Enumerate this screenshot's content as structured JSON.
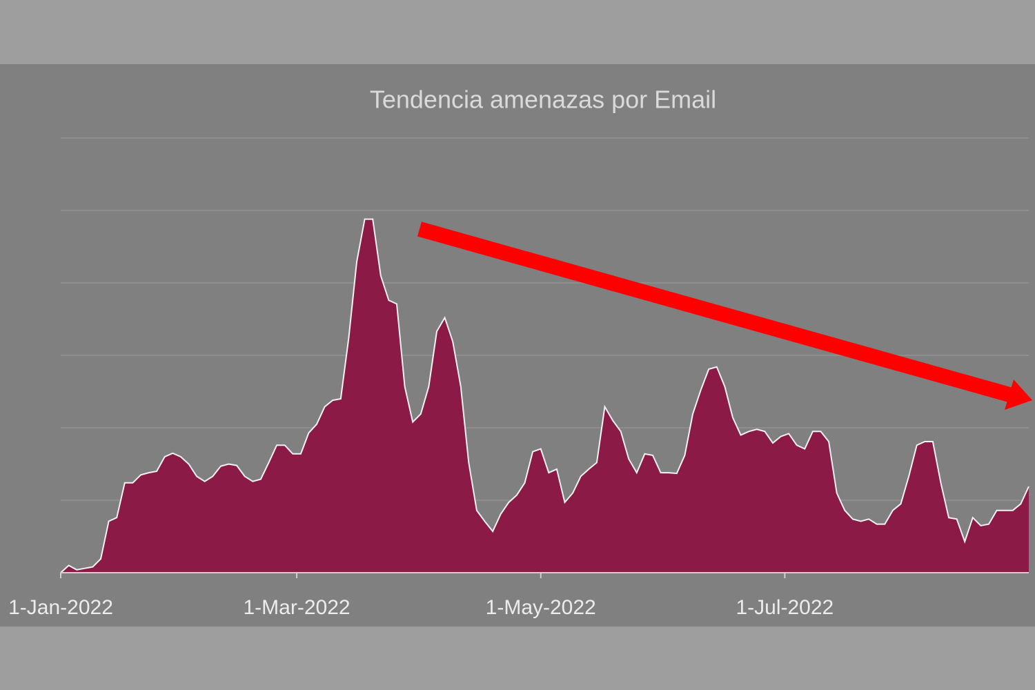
{
  "chart_data": {
    "type": "area",
    "title": "Tendencia amenazas por Email",
    "x": [
      "2022-01-01",
      "2022-01-03",
      "2022-01-05",
      "2022-01-07",
      "2022-01-09",
      "2022-01-11",
      "2022-01-13",
      "2022-01-15",
      "2022-01-17",
      "2022-01-19",
      "2022-01-21",
      "2022-01-23",
      "2022-01-25",
      "2022-01-27",
      "2022-01-29",
      "2022-01-31",
      "2022-02-02",
      "2022-02-04",
      "2022-02-06",
      "2022-02-08",
      "2022-02-10",
      "2022-02-12",
      "2022-02-14",
      "2022-02-16",
      "2022-02-18",
      "2022-02-20",
      "2022-02-22",
      "2022-02-24",
      "2022-02-26",
      "2022-02-28",
      "2022-03-02",
      "2022-03-04",
      "2022-03-06",
      "2022-03-08",
      "2022-03-10",
      "2022-03-12",
      "2022-03-14",
      "2022-03-16",
      "2022-03-18",
      "2022-03-20",
      "2022-03-22",
      "2022-03-24",
      "2022-03-26",
      "2022-03-28",
      "2022-03-30",
      "2022-04-01",
      "2022-04-03",
      "2022-04-05",
      "2022-04-07",
      "2022-04-09",
      "2022-04-11",
      "2022-04-13",
      "2022-04-15",
      "2022-04-17",
      "2022-04-19",
      "2022-04-21",
      "2022-04-23",
      "2022-04-25",
      "2022-04-27",
      "2022-04-29",
      "2022-05-01",
      "2022-05-03",
      "2022-05-05",
      "2022-05-07",
      "2022-05-09",
      "2022-05-11",
      "2022-05-13",
      "2022-05-15",
      "2022-05-17",
      "2022-05-19",
      "2022-05-21",
      "2022-05-23",
      "2022-05-25",
      "2022-05-27",
      "2022-05-29",
      "2022-05-31",
      "2022-06-02",
      "2022-06-04",
      "2022-06-06",
      "2022-06-08",
      "2022-06-10",
      "2022-06-12",
      "2022-06-14",
      "2022-06-16",
      "2022-06-18",
      "2022-06-20",
      "2022-06-22",
      "2022-06-24",
      "2022-06-26",
      "2022-06-28",
      "2022-06-30",
      "2022-07-02",
      "2022-07-04",
      "2022-07-06",
      "2022-07-08",
      "2022-07-10",
      "2022-07-12",
      "2022-07-14",
      "2022-07-16",
      "2022-07-18",
      "2022-07-20",
      "2022-07-22",
      "2022-07-24",
      "2022-07-26",
      "2022-07-28",
      "2022-07-30",
      "2022-08-01",
      "2022-08-03",
      "2022-08-05",
      "2022-08-07",
      "2022-08-09",
      "2022-08-11",
      "2022-08-13",
      "2022-08-15",
      "2022-08-17",
      "2022-08-19",
      "2022-08-21",
      "2022-08-23",
      "2022-08-25",
      "2022-08-27",
      "2022-08-29",
      "2022-08-31"
    ],
    "values": [
      0,
      0.1,
      0.04,
      0.06,
      0.08,
      0.19,
      0.71,
      0.76,
      1.24,
      1.24,
      1.35,
      1.38,
      1.4,
      1.6,
      1.65,
      1.6,
      1.5,
      1.33,
      1.26,
      1.33,
      1.47,
      1.5,
      1.48,
      1.33,
      1.26,
      1.29,
      1.52,
      1.76,
      1.76,
      1.64,
      1.64,
      1.93,
      2.05,
      2.29,
      2.38,
      2.4,
      3.24,
      4.29,
      4.88,
      4.88,
      4.1,
      3.76,
      3.71,
      2.57,
      2.08,
      2.19,
      2.57,
      3.33,
      3.52,
      3.19,
      2.57,
      1.52,
      0.86,
      0.71,
      0.57,
      0.81,
      0.97,
      1.07,
      1.24,
      1.67,
      1.71,
      1.38,
      1.43,
      0.97,
      1.1,
      1.33,
      1.43,
      1.52,
      2.29,
      2.1,
      1.95,
      1.57,
      1.38,
      1.64,
      1.62,
      1.38,
      1.38,
      1.37,
      1.62,
      2.19,
      2.52,
      2.81,
      2.84,
      2.57,
      2.14,
      1.9,
      1.95,
      1.98,
      1.95,
      1.79,
      1.88,
      1.92,
      1.76,
      1.71,
      1.95,
      1.95,
      1.81,
      1.1,
      0.86,
      0.74,
      0.71,
      0.74,
      0.67,
      0.67,
      0.86,
      0.95,
      1.33,
      1.76,
      1.81,
      1.81,
      1.24,
      0.76,
      0.74,
      0.43,
      0.76,
      0.65,
      0.67,
      0.86,
      0.86,
      0.86,
      0.95,
      1.19
    ],
    "color": "#8b1a47",
    "xlim": [
      "2022-01-01",
      "2022-08-31"
    ],
    "xticks": [
      {
        "value": "2022-01-01",
        "label": "1-Jan-2022"
      },
      {
        "value": "2022-03-01",
        "label": "1-Mar-2022"
      },
      {
        "value": "2022-05-01",
        "label": "1-May-2022"
      },
      {
        "value": "2022-07-01",
        "label": "1-Jul-2022"
      }
    ],
    "ylim": [
      0,
      6
    ],
    "yticks": [
      0,
      1,
      2,
      3,
      4,
      5,
      6
    ],
    "grid": true
  }
}
